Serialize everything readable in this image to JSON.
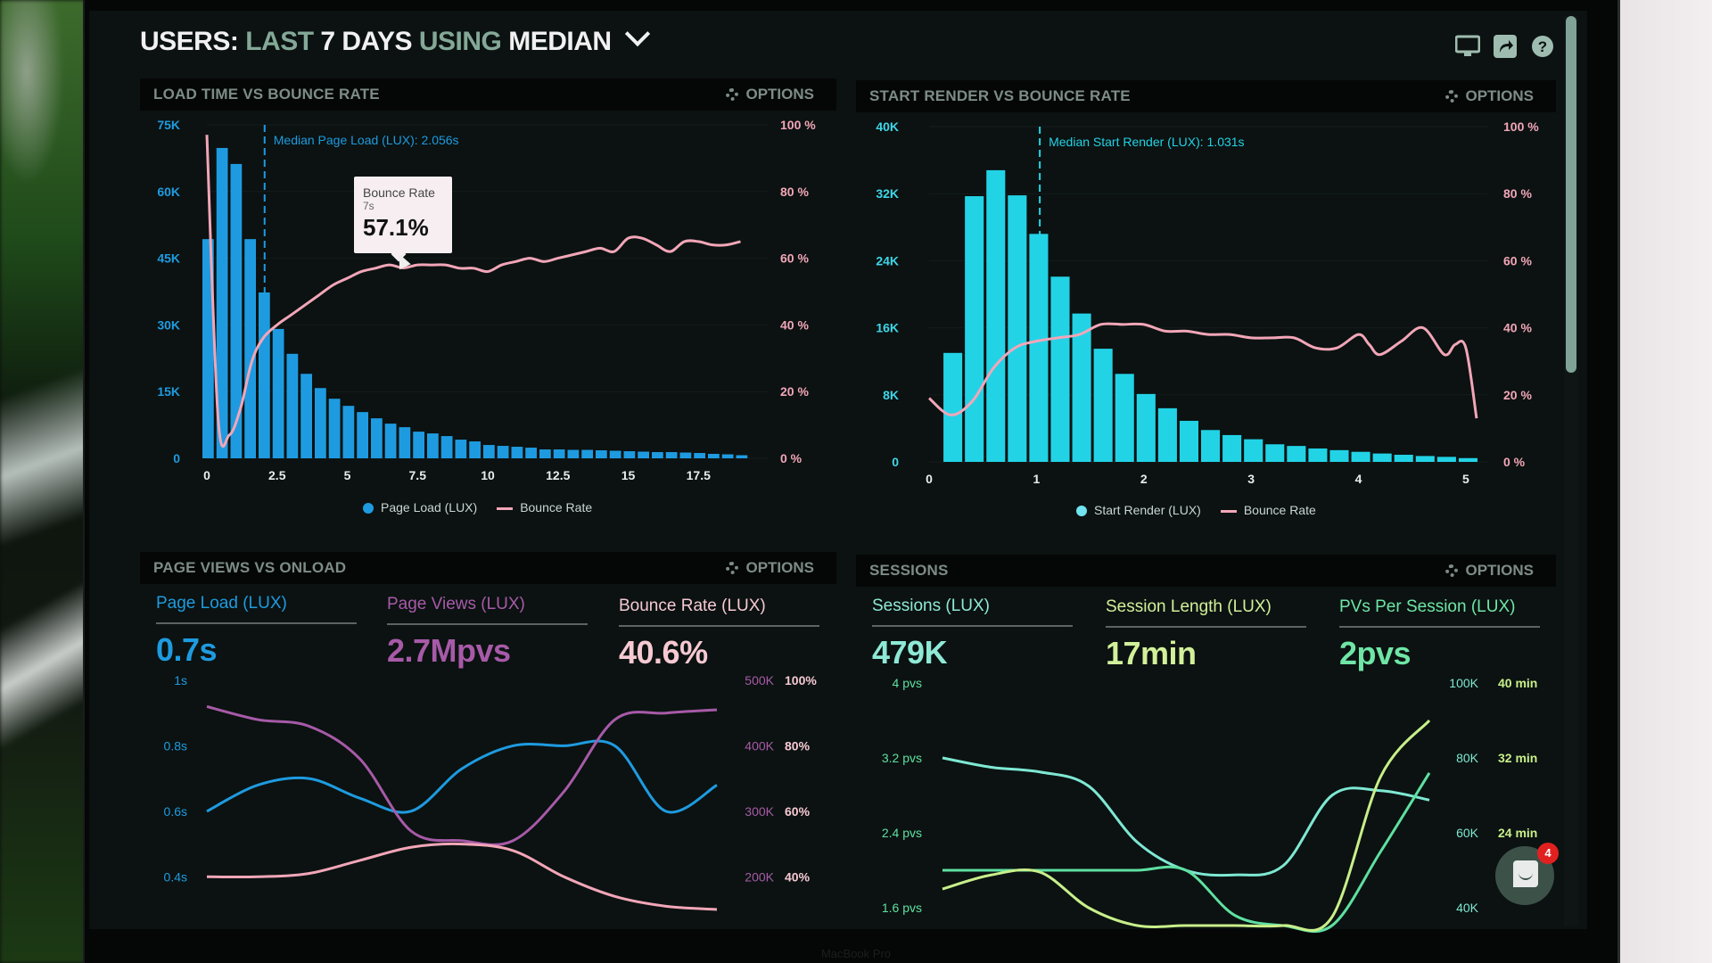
{
  "header": {
    "title_parts": [
      "USERS:",
      "LAST",
      "7 DAYS",
      "USING",
      "MEDIAN"
    ],
    "icons": [
      "monitor-icon",
      "share-icon",
      "help-icon"
    ]
  },
  "colors": {
    "blue": "#1e9be0",
    "cyan": "#1fd2e6",
    "pink": "#f2a6b8",
    "purple": "#a75aa8",
    "mint": "#7ee8d3",
    "lime": "#c8ef8a",
    "green": "#5fe0a1"
  },
  "panels": {
    "load_time": {
      "title": "LOAD TIME VS BOUNCE RATE",
      "options_label": "OPTIONS",
      "median_label": "Median Page Load (LUX): 2.056s",
      "tooltip": {
        "title": "Bounce Rate",
        "x": "7s",
        "value": "57.1%"
      },
      "legend": [
        "Page Load (LUX)",
        "Bounce Rate"
      ]
    },
    "start_render": {
      "title": "START RENDER VS BOUNCE RATE",
      "options_label": "OPTIONS",
      "median_label": "Median Start Render (LUX): 1.031s",
      "legend": [
        "Start Render (LUX)",
        "Bounce Rate"
      ]
    },
    "page_views": {
      "title": "PAGE VIEWS VS ONLOAD",
      "options_label": "OPTIONS",
      "kpis": [
        {
          "label": "Page Load (LUX)",
          "value": "0.7s"
        },
        {
          "label": "Page Views (LUX)",
          "value": "2.7Mpvs"
        },
        {
          "label": "Bounce Rate (LUX)",
          "value": "40.6%"
        }
      ]
    },
    "sessions": {
      "title": "SESSIONS",
      "options_label": "OPTIONS",
      "kpis": [
        {
          "label": "Sessions (LUX)",
          "value": "479K"
        },
        {
          "label": "Session Length (LUX)",
          "value": "17min"
        },
        {
          "label": "PVs Per Session (LUX)",
          "value": "2pvs"
        }
      ]
    }
  },
  "chat": {
    "badge_count": "4"
  },
  "device_label": "MacBook Pro",
  "chart_data": [
    {
      "id": "load_time",
      "type": "bar",
      "title": "LOAD TIME VS BOUNCE RATE",
      "xlabel": "",
      "x_ticks": [
        "0",
        "2.5",
        "5",
        "7.5",
        "10",
        "12.5",
        "15",
        "17.5"
      ],
      "xlim": [
        0,
        20
      ],
      "y_left": {
        "ticks": [
          "0",
          "15K",
          "30K",
          "45K",
          "60K",
          "75K"
        ],
        "lim": [
          0,
          75000
        ]
      },
      "y_right": {
        "ticks": [
          "0 %",
          "20 %",
          "40 %",
          "60 %",
          "80 %",
          "100 %"
        ],
        "lim": [
          0,
          100
        ]
      },
      "median_x": 2.056,
      "series": [
        {
          "name": "Page Load (LUX)",
          "kind": "bar",
          "bin_width": 0.5,
          "x": [
            0,
            0.5,
            1,
            1.5,
            2,
            2.5,
            3,
            3.5,
            4,
            4.5,
            5,
            5.5,
            6,
            6.5,
            7,
            7.5,
            8,
            8.5,
            9,
            9.5,
            10,
            10.5,
            11,
            11.5,
            12,
            12.5,
            13,
            13.5,
            14,
            14.5,
            15,
            15.5,
            16,
            16.5,
            17,
            17.5,
            18,
            18.5,
            19
          ],
          "values": [
            49300,
            69800,
            66200,
            49300,
            37300,
            29100,
            23500,
            19000,
            15800,
            13400,
            11800,
            10400,
            9000,
            7800,
            7000,
            6000,
            5600,
            5000,
            4200,
            3800,
            3000,
            2800,
            2600,
            2400,
            2000,
            2000,
            1900,
            1900,
            1800,
            1700,
            1600,
            1500,
            1400,
            1400,
            1300,
            1200,
            1000,
            900,
            700
          ]
        },
        {
          "name": "Bounce Rate",
          "kind": "line",
          "x": [
            0,
            0.4,
            0.8,
            1.2,
            1.6,
            2,
            2.5,
            3,
            3.5,
            4,
            4.5,
            5,
            5.5,
            6,
            6.5,
            7,
            7.5,
            8,
            8.5,
            9,
            9.5,
            10,
            10.5,
            11,
            11.5,
            12,
            12.5,
            13,
            13.5,
            14,
            14.5,
            15,
            15.5,
            16,
            16.5,
            17,
            17.5,
            18,
            18.5,
            19
          ],
          "values": [
            97,
            12,
            7,
            15,
            29,
            36,
            40,
            43,
            46,
            49,
            52,
            54,
            56,
            57,
            58,
            57.1,
            58,
            58,
            58,
            57,
            57,
            56,
            58,
            59,
            60,
            59,
            60,
            61,
            62,
            63,
            62,
            66,
            66,
            64,
            62,
            65,
            65,
            64,
            64,
            65
          ]
        }
      ]
    },
    {
      "id": "start_render",
      "type": "bar",
      "title": "START RENDER VS BOUNCE RATE",
      "x_ticks": [
        "0",
        "1",
        "2",
        "3",
        "4",
        "5"
      ],
      "xlim": [
        0,
        5.2
      ],
      "y_left": {
        "ticks": [
          "0",
          "8K",
          "16K",
          "24K",
          "32K",
          "40K"
        ],
        "lim": [
          0,
          40000
        ]
      },
      "y_right": {
        "ticks": [
          "0 %",
          "20 %",
          "40 %",
          "60 %",
          "80 %",
          "100 %"
        ],
        "lim": [
          0,
          100
        ]
      },
      "median_x": 1.031,
      "series": [
        {
          "name": "Start Render (LUX)",
          "kind": "bar",
          "bin_width": 0.2,
          "x": [
            0.2,
            0.4,
            0.6,
            0.8,
            1.0,
            1.2,
            1.4,
            1.6,
            1.8,
            2.0,
            2.2,
            2.4,
            2.6,
            2.8,
            3.0,
            3.2,
            3.4,
            3.6,
            3.8,
            4.0,
            4.2,
            4.4,
            4.6,
            4.8,
            5.0
          ],
          "values": [
            13000,
            31700,
            34800,
            31800,
            27200,
            22100,
            17700,
            13500,
            10500,
            8100,
            6400,
            4900,
            3800,
            3200,
            2700,
            2100,
            1900,
            1600,
            1400,
            1200,
            1000,
            850,
            700,
            600,
            450
          ]
        },
        {
          "name": "Bounce Rate",
          "kind": "line",
          "x": [
            0,
            0.2,
            0.4,
            0.6,
            0.8,
            1.0,
            1.2,
            1.4,
            1.6,
            1.8,
            2.0,
            2.2,
            2.4,
            2.6,
            2.8,
            3.0,
            3.2,
            3.4,
            3.6,
            3.8,
            4.0,
            4.1,
            4.2,
            4.4,
            4.6,
            4.8,
            4.9,
            5.0,
            5.1
          ],
          "values": [
            19,
            14,
            18,
            28,
            34,
            36,
            37,
            38,
            41,
            41,
            41,
            39,
            39,
            38,
            38,
            37,
            37,
            37,
            34,
            34,
            38,
            35,
            32,
            36,
            40,
            32,
            35,
            34,
            13
          ]
        }
      ]
    },
    {
      "id": "page_views",
      "type": "line",
      "title": "PAGE VIEWS VS ONLOAD",
      "y_left": {
        "ticks": [
          "0.4s",
          "0.6s",
          "0.8s",
          "1s"
        ],
        "lim": [
          0.3,
          1.0
        ]
      },
      "y_right_1": {
        "ticks": [
          "200K",
          "300K",
          "400K",
          "500K"
        ],
        "lim": [
          150000,
          500000
        ]
      },
      "y_right_2": {
        "ticks": [
          "40%",
          "60%",
          "80%",
          "100%"
        ],
        "lim": [
          30,
          100
        ]
      },
      "x": [
        0,
        1,
        2,
        3,
        4,
        5,
        6,
        7,
        8,
        9,
        10
      ],
      "series": [
        {
          "name": "Page Load (LUX)",
          "axis": "left",
          "values": [
            0.6,
            0.68,
            0.7,
            0.64,
            0.6,
            0.73,
            0.8,
            0.8,
            0.8,
            0.6,
            0.68
          ]
        },
        {
          "name": "Page Views (LUX)",
          "axis": "right_1",
          "values": [
            460000,
            440000,
            430000,
            380000,
            270000,
            255000,
            255000,
            330000,
            440000,
            450000,
            455000
          ]
        },
        {
          "name": "Bounce Rate (LUX)",
          "axis": "right_2",
          "values": [
            40,
            40,
            41,
            45,
            49,
            50,
            48,
            40,
            34,
            31,
            30
          ]
        }
      ]
    },
    {
      "id": "sessions",
      "type": "line",
      "title": "SESSIONS",
      "y_left": {
        "ticks": [
          "1.6 pvs",
          "2.4 pvs",
          "3.2 pvs",
          "4 pvs"
        ],
        "lim": [
          1.2,
          4.0
        ]
      },
      "y_right_1": {
        "ticks": [
          "40K",
          "60K",
          "80K",
          "100K"
        ],
        "lim": [
          30000,
          100000
        ]
      },
      "y_right_2": {
        "ticks": [
          "24 min",
          "32 min",
          "40 min"
        ],
        "lim": [
          12,
          40
        ]
      },
      "x": [
        0,
        1,
        2,
        3,
        4,
        5,
        6,
        7,
        8,
        9,
        10
      ],
      "series": [
        {
          "name": "PVs Per Session",
          "axis": "left",
          "values": [
            3.2,
            3.1,
            3.05,
            2.9,
            2.3,
            2.0,
            1.95,
            2.05,
            2.8,
            2.85,
            2.75
          ]
        },
        {
          "name": "Sessions",
          "axis": "right_1",
          "values": [
            50000,
            50000,
            50000,
            50000,
            50000,
            50000,
            38000,
            20000,
            25000,
            55000,
            76000
          ]
        },
        {
          "name": "Session Length",
          "axis": "right_2",
          "values": [
            18,
            19.5,
            19.8,
            16,
            10,
            6,
            3,
            5,
            15,
            30,
            36
          ]
        }
      ]
    }
  ]
}
